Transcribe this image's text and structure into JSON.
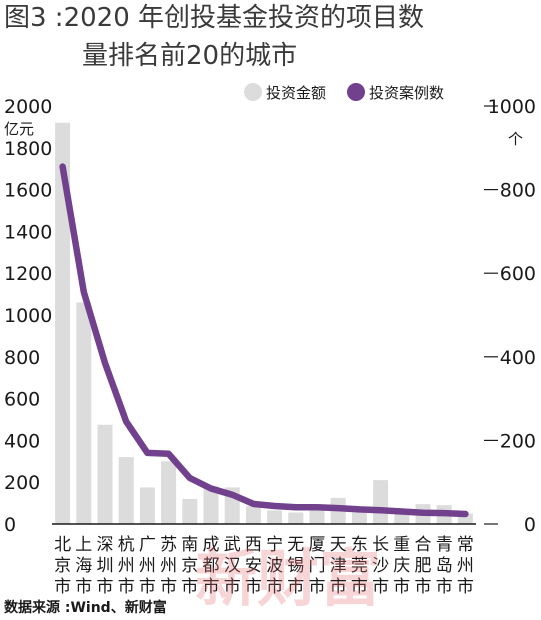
{
  "title_line1": "图3 :2020 年创投基金投资的项目数",
  "title_line2": "量排名前20的城市",
  "legend": {
    "bar_label": "投资金额",
    "line_label": "投资案例数"
  },
  "left_axis_unit": "亿元",
  "right_axis_unit": "个",
  "source": "数据来源 :Wind、新财富",
  "watermark": "新财富",
  "colors": {
    "bar": "#dcdcdc",
    "line": "#72418e",
    "axis": "#1a1a1a"
  },
  "chart_data": {
    "type": "bar",
    "categories": [
      "北京市",
      "上海市",
      "深圳市",
      "杭州市",
      "广州市",
      "苏州市",
      "南京市",
      "成都市",
      "武汉市",
      "西安市",
      "宁波市",
      "无锡市",
      "厦门市",
      "天津市",
      "东莞市",
      "长沙市",
      "重庆市",
      "合肥市",
      "青岛市",
      "常州市"
    ],
    "series": [
      {
        "name": "投资金额",
        "type": "bar",
        "axis": "left",
        "values": [
          1920,
          1060,
          475,
          320,
          175,
          300,
          120,
          180,
          175,
          85,
          65,
          55,
          70,
          125,
          55,
          210,
          60,
          95,
          90,
          50
        ]
      },
      {
        "name": "投资案例数",
        "type": "line",
        "axis": "right",
        "values": [
          855,
          555,
          385,
          245,
          170,
          168,
          110,
          85,
          70,
          48,
          43,
          40,
          40,
          38,
          35,
          33,
          30,
          27,
          26,
          24
        ]
      }
    ],
    "left_axis": {
      "min": 0,
      "max": 2000,
      "ticks": [
        "0",
        "200",
        "400",
        "600",
        "800",
        "1000",
        "1200",
        "1400",
        "1600",
        "1800",
        "2000"
      ]
    },
    "right_axis": {
      "min": 0,
      "max": 1000,
      "ticks": [
        "0",
        "200",
        "400",
        "600",
        "800",
        "1000"
      ]
    }
  }
}
